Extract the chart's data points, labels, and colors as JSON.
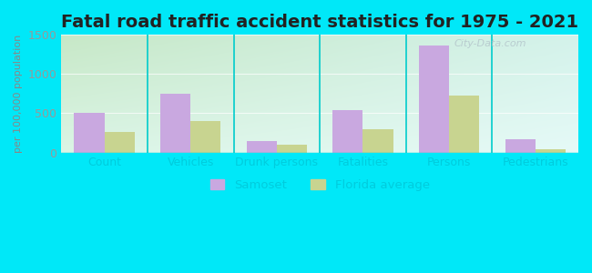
{
  "title": "Fatal road traffic accident statistics for 1975 - 2021",
  "ylabel": "per 100,000 population",
  "categories": [
    "Count",
    "Vehicles",
    "Drunk persons",
    "Fatalities",
    "Persons",
    "Pedestrians"
  ],
  "samoset": [
    510,
    750,
    150,
    540,
    1370,
    165
  ],
  "florida_avg": [
    265,
    405,
    105,
    295,
    730,
    45
  ],
  "samoset_color": "#c9a8e0",
  "florida_color": "#c8d490",
  "ylim": [
    0,
    1500
  ],
  "yticks": [
    0,
    500,
    1000,
    1500
  ],
  "bar_width": 0.35,
  "bg_topleft": "#c8e8c8",
  "bg_bottomright": "#d8f5f0",
  "outer_bg": "#00e8f8",
  "title_fontsize": 14,
  "tick_fontsize": 9,
  "tick_color": "#00ccdd",
  "legend_labels": [
    "Samoset",
    "Florida average"
  ],
  "watermark": "City-Data.com",
  "grid_color": "#c0d8c0",
  "separator_color": "#00cccc"
}
